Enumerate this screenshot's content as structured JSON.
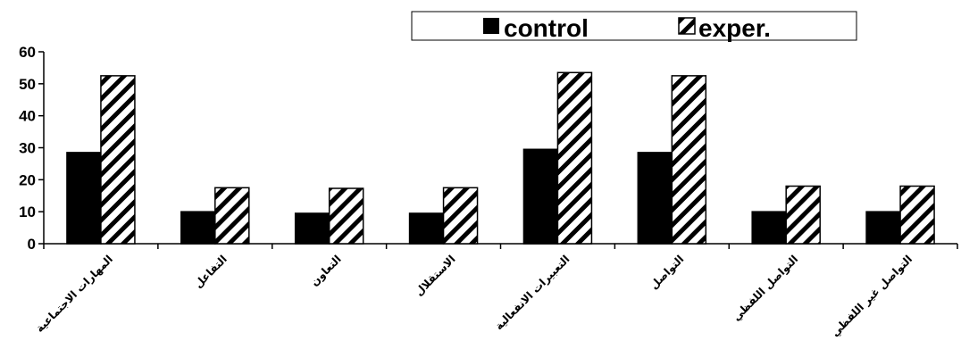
{
  "chart_data": {
    "type": "bar",
    "categories": [
      "المهارات الاجتماعية",
      "التفاعل",
      "التعاون",
      "الاستقلال",
      "التعبيرات الانفعالية",
      "التواصل",
      "التواصل اللفظي",
      "التواصل غير اللفظي"
    ],
    "series": [
      {
        "name": "control",
        "values": [
          28.5,
          10,
          9.5,
          9.5,
          29.5,
          28.5,
          10,
          10
        ],
        "color": "#000000"
      },
      {
        "name": "exper.",
        "values": [
          52.5,
          17.5,
          17.3,
          17.5,
          53.5,
          52.5,
          18,
          18
        ],
        "pattern": "diagonal-hatch"
      }
    ],
    "yticks": [
      0,
      10,
      20,
      30,
      40,
      50,
      60
    ],
    "ylim": [
      0,
      60
    ],
    "grid": false,
    "legend": "top-right",
    "title": "",
    "xlabel": "",
    "ylabel": ""
  }
}
